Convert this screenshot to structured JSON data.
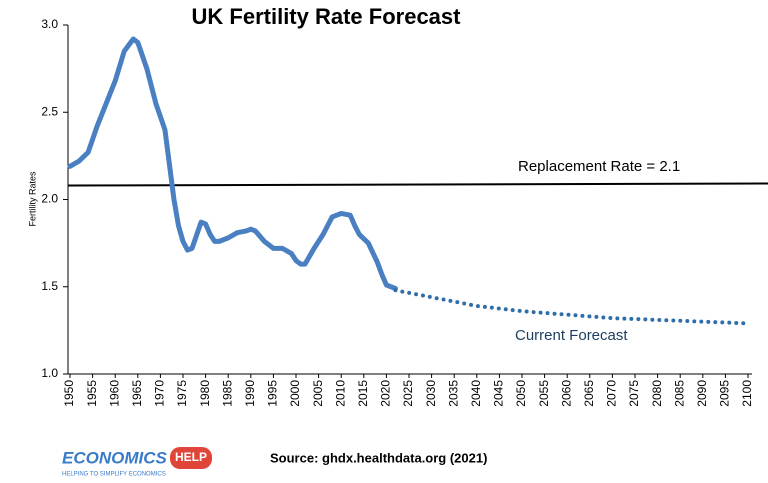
{
  "chart_data": {
    "type": "line",
    "title": "UK Fertility Rate Forecast",
    "y_label": "Fertility Rates",
    "xlim": [
      1950,
      2100
    ],
    "xticks": [
      1950,
      1955,
      1960,
      1965,
      1970,
      1975,
      1980,
      1985,
      1990,
      1995,
      2000,
      2005,
      2010,
      2015,
      2020,
      2025,
      2030,
      2035,
      2040,
      2045,
      2050,
      2055,
      2060,
      2065,
      2070,
      2075,
      2080,
      2085,
      2090,
      2095,
      2100
    ],
    "ylim": [
      1.0,
      3.0
    ],
    "yticks": [
      {
        "value": 1.0,
        "label": "1.0"
      },
      {
        "value": 1.5,
        "label": "1.5"
      },
      {
        "value": 2.0,
        "label": "2.0"
      },
      {
        "value": 2.5,
        "label": "2.5"
      },
      {
        "value": 3.0,
        "label": "3.0"
      }
    ],
    "grid": false,
    "series": [
      {
        "color": "#4a80c2",
        "style": "solid",
        "x": [
          1950,
          1952,
          1954,
          1956,
          1958,
          1960,
          1962,
          1964,
          1965,
          1967,
          1969,
          1971,
          1972,
          1973,
          1974,
          1975,
          1976,
          1977,
          1979,
          1980,
          1981,
          1982,
          1983,
          1985,
          1987,
          1989,
          1990,
          1991,
          1993,
          1995,
          1997,
          1999,
          2000,
          2001,
          2002,
          2004,
          2006,
          2008,
          2010,
          2012,
          2013,
          2014,
          2016,
          2018,
          2019,
          2020,
          2022
        ],
        "values": [
          2.19,
          2.22,
          2.27,
          2.42,
          2.55,
          2.68,
          2.85,
          2.92,
          2.9,
          2.75,
          2.55,
          2.4,
          2.2,
          2.0,
          1.85,
          1.76,
          1.71,
          1.72,
          1.87,
          1.86,
          1.8,
          1.76,
          1.76,
          1.78,
          1.81,
          1.82,
          1.83,
          1.82,
          1.76,
          1.72,
          1.72,
          1.69,
          1.65,
          1.63,
          1.63,
          1.72,
          1.8,
          1.9,
          1.92,
          1.91,
          1.85,
          1.8,
          1.75,
          1.64,
          1.57,
          1.51,
          1.49
        ]
      },
      {
        "name": "Current Forecast",
        "color": "#2f6ea8",
        "style": "dotted",
        "x": [
          2022,
          2030,
          2040,
          2050,
          2060,
          2070,
          2080,
          2090,
          2100
        ],
        "values": [
          1.48,
          1.44,
          1.39,
          1.36,
          1.34,
          1.32,
          1.31,
          1.3,
          1.29
        ]
      }
    ],
    "reference_line": {
      "value": 2.08,
      "label": "Replacement Rate = 2.1",
      "color": "#000000"
    },
    "source": "Source: ghdx.healthdata.org (2021)",
    "logo": {
      "name": "ECONOMICS",
      "badge": "HELP",
      "tagline": "HELPING TO SIMPLIFY ECONOMICS"
    }
  }
}
